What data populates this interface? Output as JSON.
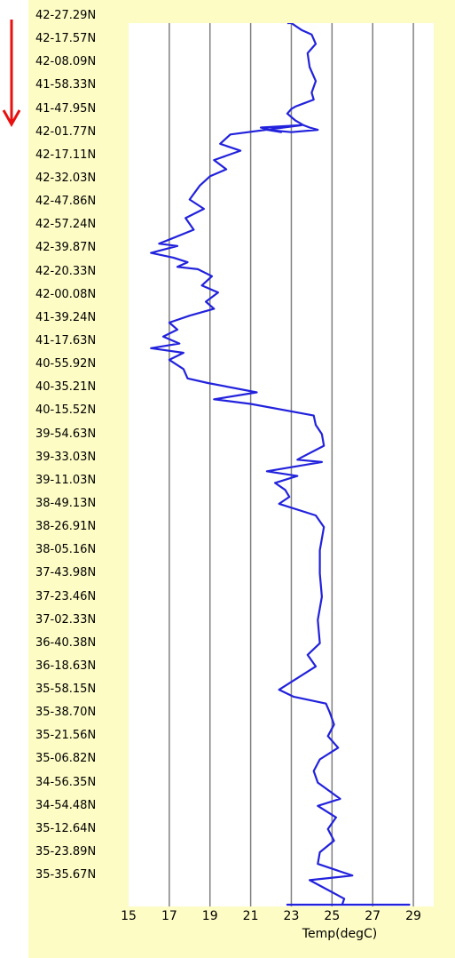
{
  "chart_data": {
    "type": "line",
    "orientation": "vertical-profile",
    "xlabel": "Temp(degC)",
    "xlim": [
      15,
      30
    ],
    "xticks": [
      15,
      17,
      19,
      21,
      23,
      25,
      27,
      29
    ],
    "grid": true,
    "line_color": "#2222dd",
    "arrow_color": "#e81010",
    "y_tick_labels": [
      "42-27.29N",
      "42-17.57N",
      "42-08.09N",
      "41-58.33N",
      "41-47.95N",
      "42-01.77N",
      "42-17.11N",
      "42-32.03N",
      "42-47.86N",
      "42-57.24N",
      "42-39.87N",
      "42-20.33N",
      "42-00.08N",
      "41-39.24N",
      "41-17.63N",
      "40-55.92N",
      "40-35.21N",
      "40-15.52N",
      "39-54.63N",
      "39-33.03N",
      "39-11.03N",
      "38-49.13N",
      "38-26.91N",
      "38-05.16N",
      "37-43.98N",
      "37-23.46N",
      "37-02.33N",
      "36-40.38N",
      "36-18.63N",
      "35-58.15N",
      "35-38.70N",
      "35-21.56N",
      "35-06.82N",
      "34-56.35N",
      "34-54.48N",
      "35-12.64N",
      "35-23.89N",
      "35-35.67N"
    ],
    "series": [
      {
        "x": [
          22.8,
          23.0,
          23.5,
          24.0,
          24.2,
          23.8,
          23.9,
          24.2,
          24.0,
          24.1,
          23.5,
          23.2,
          23.0,
          22.8,
          23.2,
          23.6,
          23.9,
          24.3,
          23.0,
          21.8,
          22.5,
          21.5,
          23.5,
          20.0,
          19.5,
          20.5,
          19.2,
          19.8,
          19.0,
          18.5,
          18.0,
          18.7,
          17.8,
          18.2,
          16.5,
          17.4,
          16.1,
          17.2,
          17.9,
          17.4,
          18.4,
          19.1,
          18.6,
          19.4,
          18.8,
          19.2,
          18.0,
          17.0,
          17.4,
          16.7,
          17.5,
          16.1,
          17.7,
          17.0,
          17.7,
          17.9,
          18.9,
          21.3,
          19.2,
          21.0,
          24.1,
          24.2,
          24.5,
          24.6,
          23.5,
          23.3,
          24.5,
          21.8,
          23.3,
          22.2,
          22.7,
          22.9,
          22.4,
          24.2,
          24.6,
          24.4,
          24.4,
          24.5,
          24.3,
          24.4,
          23.8,
          24.2,
          22.4,
          23.1,
          24.7,
          24.9,
          25.1,
          24.8,
          25.3,
          24.4,
          24.1,
          24.3,
          25.4,
          24.3,
          25.2,
          24.8,
          25.1,
          24.4,
          24.3,
          26.0,
          23.9,
          25.6,
          25.5,
          25.7,
          24.1,
          24.9,
          22.8,
          25.2,
          25.8,
          26.3,
          26.2,
          26.5,
          26.7,
          26.9,
          27.1,
          27.7,
          28.8,
          28.1,
          27.3
        ],
        "y": [
          0.0,
          0.3,
          0.6,
          0.8,
          1.2,
          1.6,
          2.2,
          2.8,
          3.3,
          3.6,
          3.8,
          3.9,
          4.0,
          4.2,
          4.5,
          4.7,
          4.8,
          4.9,
          5.0,
          4.9,
          5.0,
          4.8,
          4.7,
          5.1,
          5.5,
          5.8,
          6.2,
          6.6,
          6.9,
          7.3,
          7.9,
          8.3,
          8.7,
          9.2,
          9.8,
          9.9,
          10.2,
          10.4,
          10.6,
          10.8,
          10.9,
          11.2,
          11.6,
          11.9,
          12.3,
          12.6,
          12.9,
          13.2,
          13.5,
          13.8,
          14.1,
          14.3,
          14.5,
          14.8,
          15.2,
          15.6,
          15.8,
          16.2,
          16.5,
          16.7,
          17.2,
          17.6,
          18.0,
          18.5,
          19.0,
          19.1,
          19.2,
          19.6,
          19.8,
          20.1,
          20.4,
          20.7,
          21.0,
          21.5,
          22.0,
          23.0,
          24.0,
          25.0,
          26.0,
          27.0,
          27.5,
          28.0,
          29.0,
          29.3,
          29.6,
          30.0,
          30.5,
          31.0,
          31.5,
          32.0,
          32.5,
          33.0,
          33.7,
          34.0,
          34.5,
          35.0,
          35.5,
          36.0,
          36.5,
          37.0,
          37.2,
          38.0,
          38.8,
          39.3,
          39.6,
          40.2,
          40.8,
          41.0,
          41.4,
          41.8,
          42.2,
          42.7,
          43.2,
          43.7,
          44.0,
          44.5,
          45.0,
          45.5,
          46.0
        ]
      }
    ]
  }
}
